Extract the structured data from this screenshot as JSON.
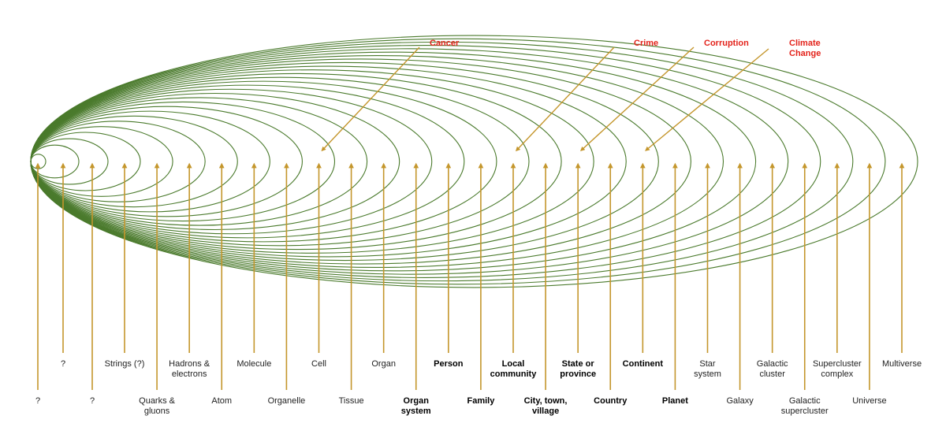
{
  "colors": {
    "ellipse": "#4a7a2c",
    "arrow": "#c4962c",
    "problem_label": "#e3231b",
    "label": "#222222"
  },
  "levels": [
    {
      "lines": [
        "?"
      ],
      "bold": false
    },
    {
      "lines": [
        "?"
      ],
      "bold": false
    },
    {
      "lines": [
        "?"
      ],
      "bold": false
    },
    {
      "lines": [
        "Strings (?)"
      ],
      "bold": false
    },
    {
      "lines": [
        "Quarks &",
        "gluons"
      ],
      "bold": false
    },
    {
      "lines": [
        "Hadrons &",
        "electrons"
      ],
      "bold": false
    },
    {
      "lines": [
        "Atom"
      ],
      "bold": false
    },
    {
      "lines": [
        "Molecule"
      ],
      "bold": false
    },
    {
      "lines": [
        "Organelle"
      ],
      "bold": false
    },
    {
      "lines": [
        "Cell"
      ],
      "bold": false
    },
    {
      "lines": [
        "Tissue"
      ],
      "bold": false
    },
    {
      "lines": [
        "Organ"
      ],
      "bold": false
    },
    {
      "lines": [
        "Organ",
        "system"
      ],
      "bold": true
    },
    {
      "lines": [
        "Person"
      ],
      "bold": true
    },
    {
      "lines": [
        "Family"
      ],
      "bold": true
    },
    {
      "lines": [
        "Local",
        "community"
      ],
      "bold": true
    },
    {
      "lines": [
        "City, town,",
        "village"
      ],
      "bold": true
    },
    {
      "lines": [
        "State or",
        "province"
      ],
      "bold": true
    },
    {
      "lines": [
        "Country"
      ],
      "bold": true
    },
    {
      "lines": [
        "Continent"
      ],
      "bold": true
    },
    {
      "lines": [
        "Planet"
      ],
      "bold": true
    },
    {
      "lines": [
        "Star",
        "system"
      ],
      "bold": false
    },
    {
      "lines": [
        "Galaxy"
      ],
      "bold": false
    },
    {
      "lines": [
        "Galactic",
        "cluster"
      ],
      "bold": false
    },
    {
      "lines": [
        "Galactic",
        "supercluster"
      ],
      "bold": false
    },
    {
      "lines": [
        "Supercluster",
        "complex"
      ],
      "bold": false
    },
    {
      "lines": [
        "Universe"
      ],
      "bold": false
    },
    {
      "lines": [
        "Multiverse"
      ],
      "bold": false
    }
  ],
  "problems": [
    {
      "lines": [
        "Cancer"
      ],
      "target_level": "Cell"
    },
    {
      "lines": [
        "Crime"
      ],
      "target_level": "Local community"
    },
    {
      "lines": [
        "Corruption"
      ],
      "target_level": "State or province"
    },
    {
      "lines": [
        "Climate",
        "Change"
      ],
      "target_level": "Continent"
    }
  ]
}
